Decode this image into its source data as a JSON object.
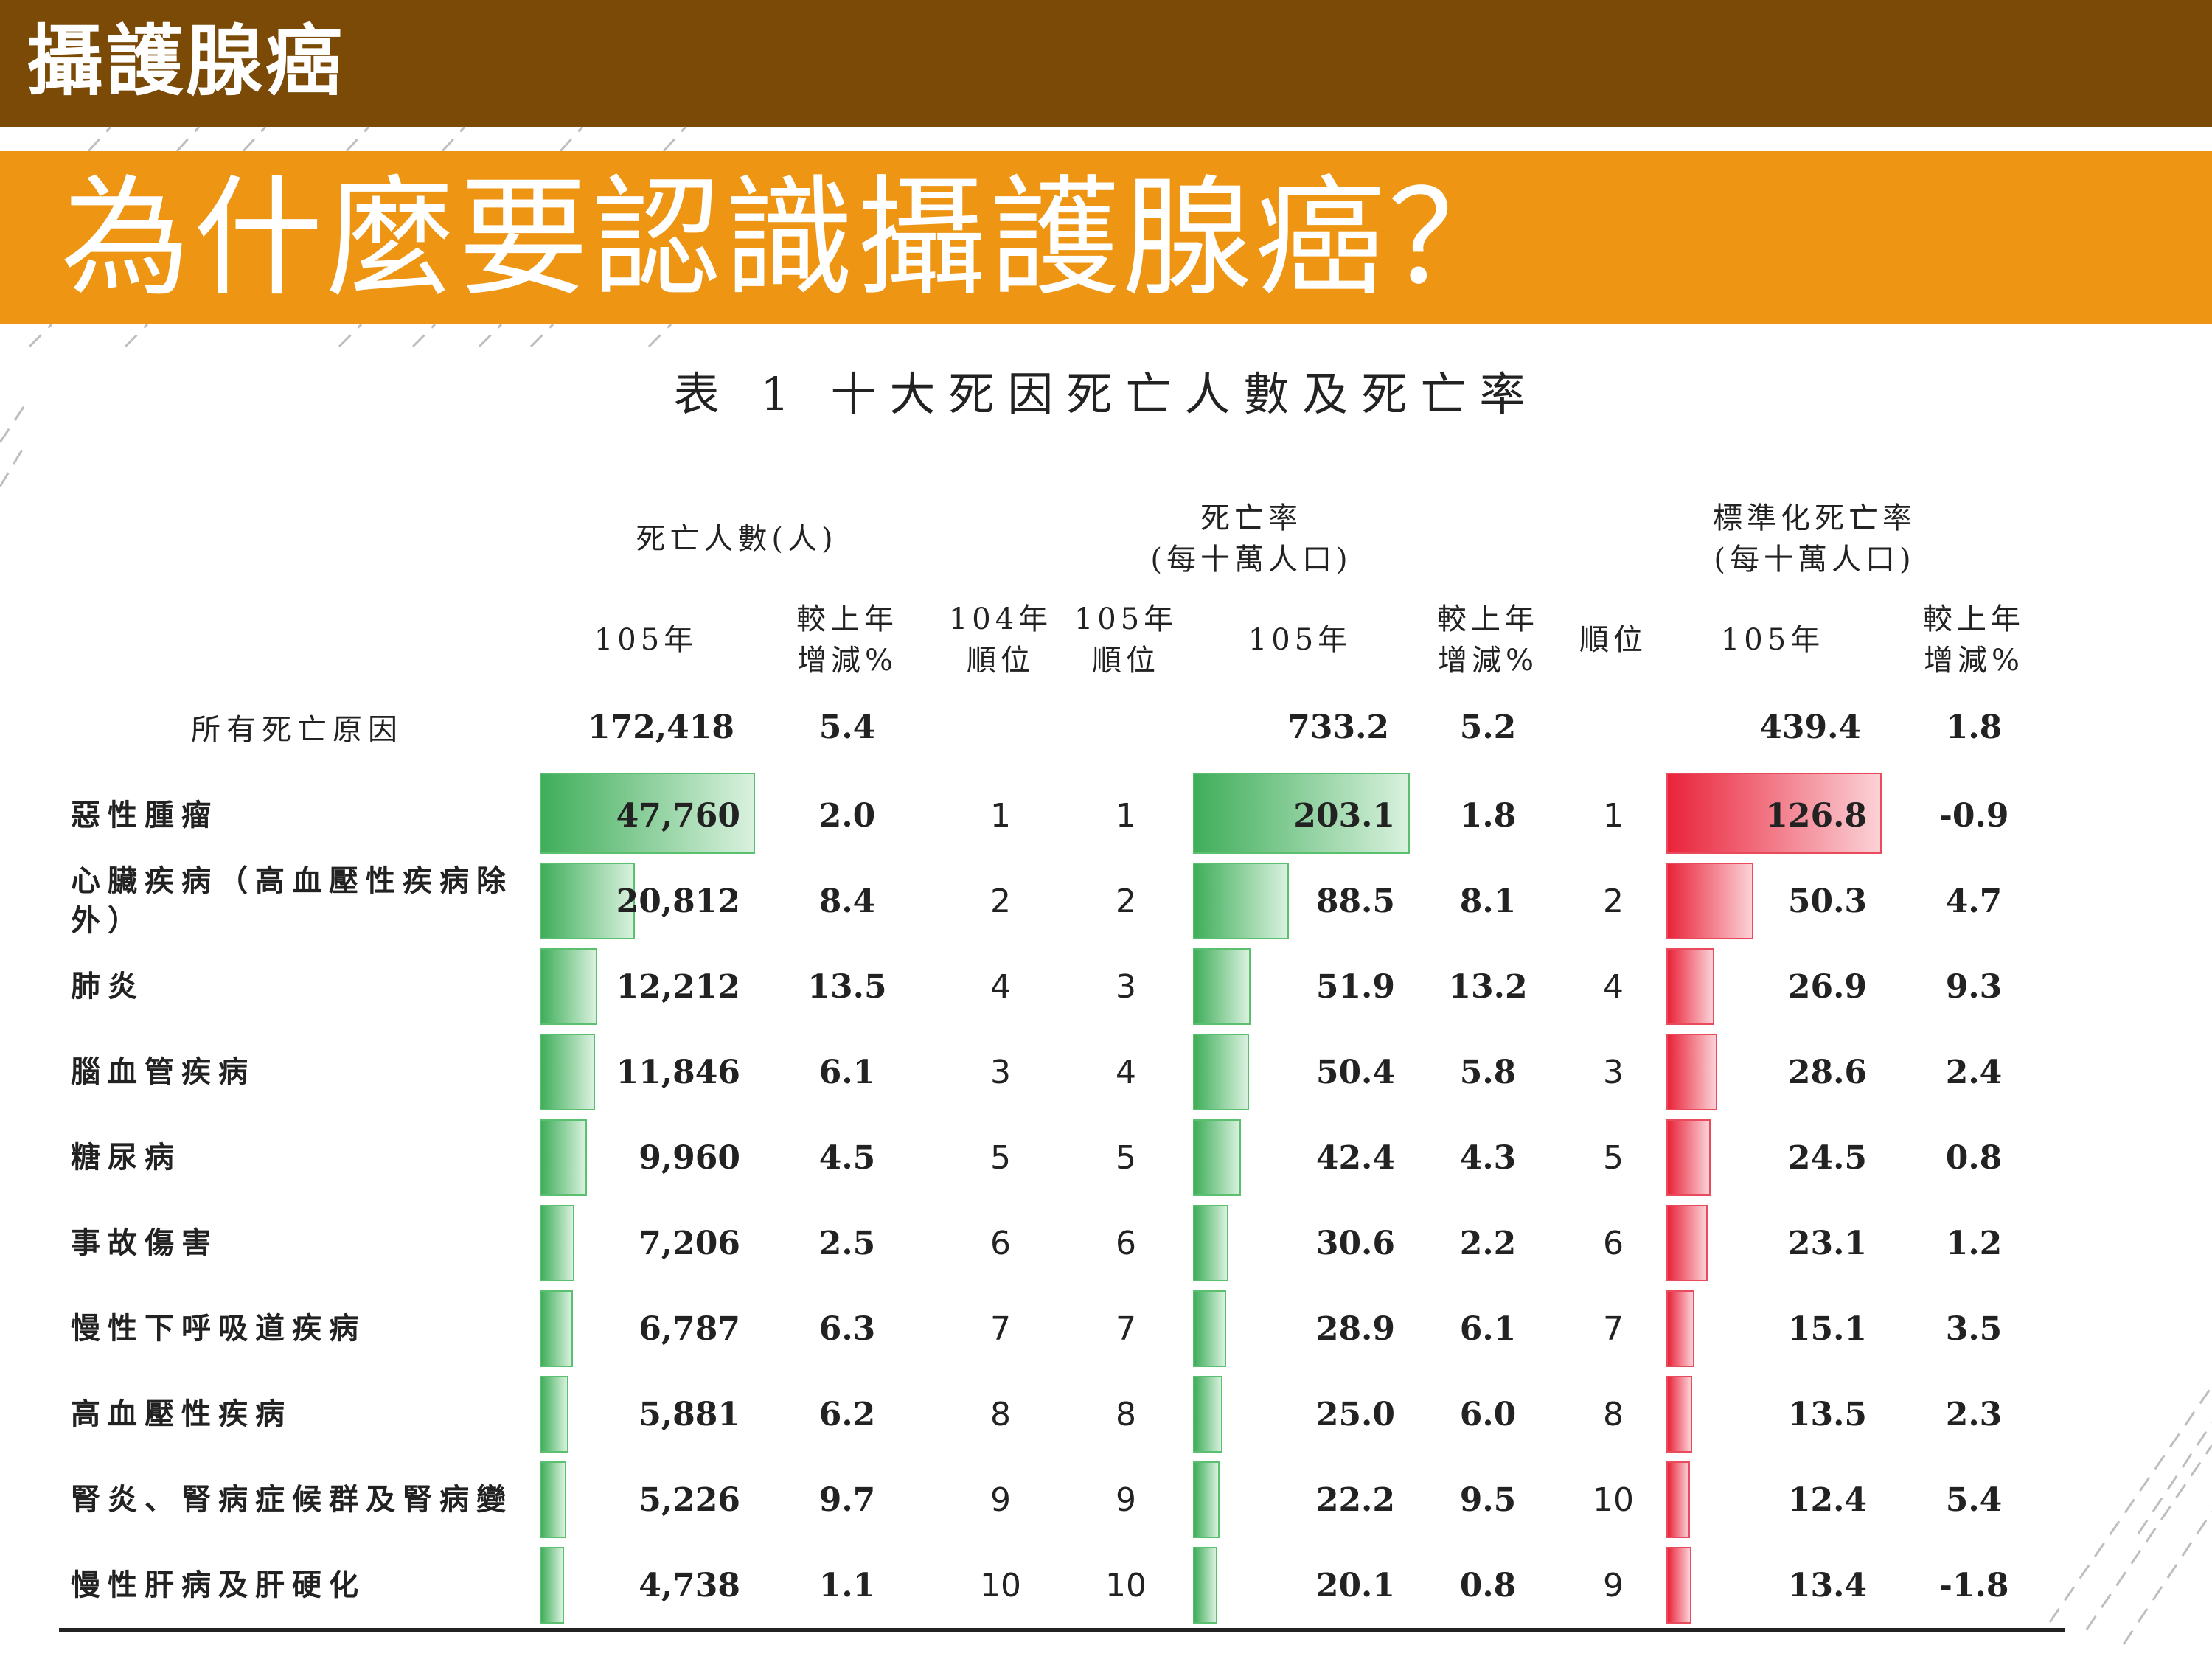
{
  "header": {
    "title": "攝護腺癌"
  },
  "banner": {
    "title": "為什麼要認識攝護腺癌？"
  },
  "table": {
    "caption": "表 1 十大死因死亡人數及死亡率",
    "groups": {
      "deaths": "死亡人數(人)",
      "rate_line1": "死亡率",
      "rate_line2": "(每十萬人口)",
      "std_line1": "標準化死亡率",
      "std_line2": "(每十萬人口)"
    },
    "subheaders": {
      "d_year": "105年",
      "d_change_1": "較上年",
      "d_change_2": "增減%",
      "rank104_1": "104年",
      "rank104_2": "順位",
      "rank105_1": "105年",
      "rank105_2": "順位",
      "r_year": "105年",
      "r_change_1": "較上年",
      "r_change_2": "增減%",
      "s_rank": "順位",
      "s_year": "105年",
      "s_change_1": "較上年",
      "s_change_2": "增減%"
    },
    "total": {
      "name": "所有死亡原因",
      "deaths": "172,418",
      "deaths_change": "5.4",
      "rate": "733.2",
      "rate_change": "5.2",
      "std_rate": "439.4",
      "std_change": "1.8"
    },
    "rows": [
      {
        "name": "惡性腫瘤",
        "deaths": "47,760",
        "deaths_change": "2.0",
        "rank104": "1",
        "rank105": "1",
        "rate": "203.1",
        "rate_change": "1.8",
        "std_rank": "1",
        "std_rate": "126.8",
        "std_change": "-0.9"
      },
      {
        "name": "心臟疾病（高血壓性疾病除外）",
        "deaths": "20,812",
        "deaths_change": "8.4",
        "rank104": "2",
        "rank105": "2",
        "rate": "88.5",
        "rate_change": "8.1",
        "std_rank": "2",
        "std_rate": "50.3",
        "std_change": "4.7"
      },
      {
        "name": "肺炎",
        "deaths": "12,212",
        "deaths_change": "13.5",
        "rank104": "4",
        "rank105": "3",
        "rate": "51.9",
        "rate_change": "13.2",
        "std_rank": "4",
        "std_rate": "26.9",
        "std_change": "9.3"
      },
      {
        "name": "腦血管疾病",
        "deaths": "11,846",
        "deaths_change": "6.1",
        "rank104": "3",
        "rank105": "4",
        "rate": "50.4",
        "rate_change": "5.8",
        "std_rank": "3",
        "std_rate": "28.6",
        "std_change": "2.4"
      },
      {
        "name": "糖尿病",
        "deaths": "9,960",
        "deaths_change": "4.5",
        "rank104": "5",
        "rank105": "5",
        "rate": "42.4",
        "rate_change": "4.3",
        "std_rank": "5",
        "std_rate": "24.5",
        "std_change": "0.8"
      },
      {
        "name": "事故傷害",
        "deaths": "7,206",
        "deaths_change": "2.5",
        "rank104": "6",
        "rank105": "6",
        "rate": "30.6",
        "rate_change": "2.2",
        "std_rank": "6",
        "std_rate": "23.1",
        "std_change": "1.2"
      },
      {
        "name": "慢性下呼吸道疾病",
        "deaths": "6,787",
        "deaths_change": "6.3",
        "rank104": "7",
        "rank105": "7",
        "rate": "28.9",
        "rate_change": "6.1",
        "std_rank": "7",
        "std_rate": "15.1",
        "std_change": "3.5"
      },
      {
        "name": "高血壓性疾病",
        "deaths": "5,881",
        "deaths_change": "6.2",
        "rank104": "8",
        "rank105": "8",
        "rate": "25.0",
        "rate_change": "6.0",
        "std_rank": "8",
        "std_rate": "13.5",
        "std_change": "2.3"
      },
      {
        "name": "腎炎、腎病症候群及腎病變",
        "deaths": "5,226",
        "deaths_change": "9.7",
        "rank104": "9",
        "rank105": "9",
        "rate": "22.2",
        "rate_change": "9.5",
        "std_rank": "10",
        "std_rate": "12.4",
        "std_change": "5.4"
      },
      {
        "name": "慢性肝病及肝硬化",
        "deaths": "4,738",
        "deaths_change": "1.1",
        "rank104": "10",
        "rank105": "10",
        "rate": "20.1",
        "rate_change": "0.8",
        "std_rank": "9",
        "std_rate": "13.4",
        "std_change": "-1.8"
      }
    ],
    "colors": {
      "deaths_bar": "#3fae5a",
      "rate_bar": "#3fae5a",
      "std_bar": "#e9233a"
    }
  }
}
